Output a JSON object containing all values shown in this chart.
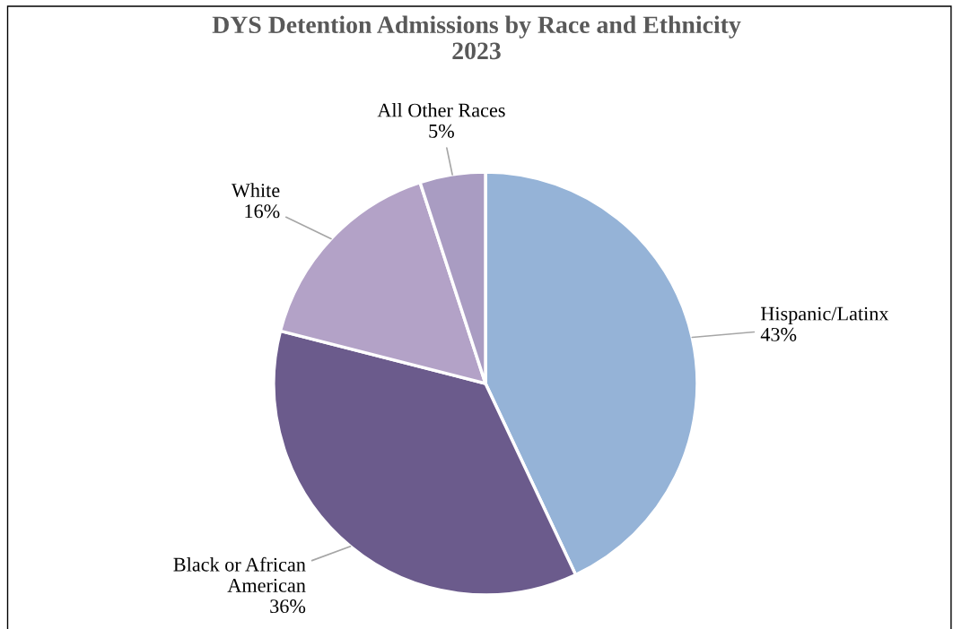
{
  "chart_data": {
    "type": "pie",
    "title": "DYS Detention Admissions by Race and Ethnicity\n2023",
    "categories": [
      "Hispanic/Latinx",
      "Black or African\nAmerican",
      "White",
      "All Other Races"
    ],
    "values": [
      43,
      36,
      16,
      5
    ],
    "colors": [
      "#95b3d7",
      "#6b5b8c",
      "#b3a2c7",
      "#a99cc2"
    ],
    "value_labels": [
      "43%",
      "36%",
      "16%",
      "5%"
    ],
    "legend": false
  }
}
